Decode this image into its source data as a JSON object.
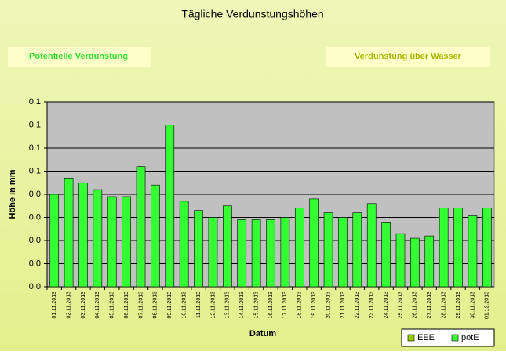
{
  "chart_data": {
    "type": "bar",
    "title": "Tägliche Verdunstungshöhen",
    "buttons": [
      "Potentielle Verdunstung",
      "Verdunstung über Wasser"
    ],
    "y_label": "Höhe in mm",
    "x_label": "Datum",
    "categories": [
      "01.11.2013",
      "02.11.2013",
      "03.11.2013",
      "04.11.2013",
      "05.11.2013",
      "06.11.2013",
      "07.11.2013",
      "08.11.2013",
      "09.11.2013",
      "10.11.2013",
      "11.11.2013",
      "12.11.2013",
      "13.11.2013",
      "14.11.2013",
      "15.11.2013",
      "16.11.2013",
      "17.11.2013",
      "18.11.2013",
      "19.11.2013",
      "20.11.2013",
      "21.11.2013",
      "22.11.2013",
      "23.11.2013",
      "24.11.2013",
      "25.11.2013",
      "26.11.2013",
      "27.11.2013",
      "28.11.2013",
      "29.11.2013",
      "30.11.2013",
      "01.12.2013"
    ],
    "series": [
      {
        "name": "EEE",
        "color": "#99cc00",
        "values": [
          null,
          null,
          null,
          null,
          null,
          null,
          null,
          null,
          null,
          null,
          null,
          null,
          null,
          null,
          null,
          null,
          null,
          null,
          null,
          null,
          null,
          null,
          null,
          null,
          null,
          null,
          null,
          null,
          null,
          null,
          null
        ]
      },
      {
        "name": "potE",
        "color": "#33ff33",
        "values": [
          0.04,
          0.047,
          0.045,
          0.042,
          0.039,
          0.039,
          0.052,
          0.044,
          0.07,
          0.037,
          0.033,
          0.03,
          0.035,
          0.029,
          0.029,
          0.029,
          0.03,
          0.034,
          0.038,
          0.032,
          0.03,
          0.032,
          0.036,
          0.028,
          0.023,
          0.021,
          0.022,
          0.034,
          0.034,
          0.031,
          0.034
        ]
      }
    ],
    "ylim": [
      0,
      0.08
    ],
    "yticks": [
      {
        "value": 0,
        "label": "0,0"
      },
      {
        "value": 0.01,
        "label": "0,0"
      },
      {
        "value": 0.02,
        "label": "0,0"
      },
      {
        "value": 0.03,
        "label": "0,0"
      },
      {
        "value": 0.04,
        "label": "0,0"
      },
      {
        "value": 0.05,
        "label": "0,1"
      },
      {
        "value": 0.06,
        "label": "0,1"
      },
      {
        "value": 0.07,
        "label": "0,1"
      },
      {
        "value": 0.08,
        "label": "0,1"
      }
    ],
    "grid": true,
    "legend": "bottom-right"
  }
}
